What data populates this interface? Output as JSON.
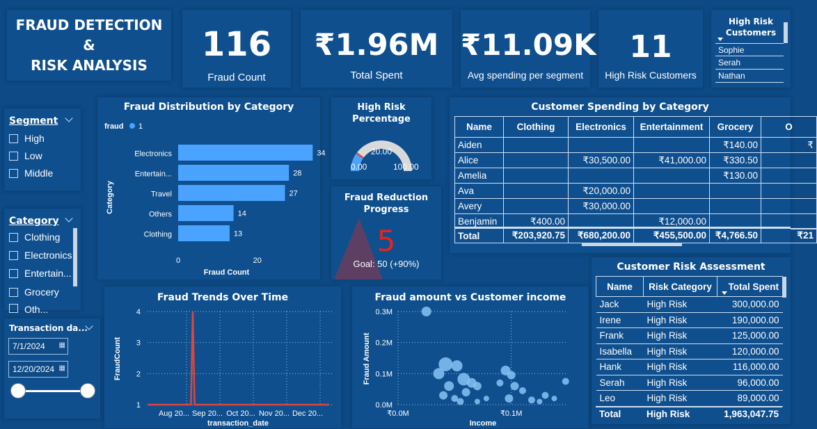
{
  "header": {
    "title_line1": "FRAUD DETECTION",
    "title_line2": "&",
    "title_line3": "RISK ANALYSIS"
  },
  "kpis": [
    {
      "value": "116",
      "label": "Fraud Count"
    },
    {
      "value": "₹1.96M",
      "label": "Total Spent"
    },
    {
      "value": "₹11.09K",
      "label": "Avg spending per segment"
    },
    {
      "value": "11",
      "label": "High Risk Customers"
    }
  ],
  "high_risk_list": {
    "title_line1": "High Risk",
    "title_line2": "Customers",
    "items": [
      "Sophie",
      "Serah",
      "Nathan"
    ]
  },
  "segment_slicer": {
    "title": "Segment",
    "items": [
      "High",
      "Low",
      "Middle"
    ]
  },
  "category_slicer": {
    "title": "Category",
    "items": [
      "Clothing",
      "Electronics",
      "Entertain...",
      "Grocery",
      "Oth..."
    ]
  },
  "date_slicer": {
    "title": "Transaction da...",
    "start": "7/1/2024",
    "end": "12/20/2024"
  },
  "gauge": {
    "title_line1": "High Risk",
    "title_line2": "Percentage",
    "value": 20,
    "value_label": "20.00",
    "min_label": "0.00",
    "max_label": "100.00",
    "min": 0,
    "max": 100
  },
  "fraud_reduction": {
    "title_line1": "Fraud Reduction",
    "title_line2": "Progress",
    "value": "5",
    "goal": "Goal: 50 (+90%)"
  },
  "customer_spending": {
    "title": "Customer Spending by Category",
    "columns": [
      "Name",
      "Clothing",
      "Electronics",
      "Entertainment",
      "Grocery",
      "O"
    ],
    "rows": [
      [
        "Aiden",
        "",
        "",
        "",
        "₹140.00",
        "₹"
      ],
      [
        "Alice",
        "",
        "₹30,500.00",
        "₹41,000.00",
        "₹330.50",
        ""
      ],
      [
        "Amelia",
        "",
        "",
        "",
        "₹130.00",
        ""
      ],
      [
        "Ava",
        "",
        "₹20,000.00",
        "",
        "",
        ""
      ],
      [
        "Avery",
        "",
        "₹30,000.00",
        "",
        "",
        ""
      ],
      [
        "Benjamin",
        "₹400.00",
        "",
        "₹12,000.00",
        "",
        ""
      ]
    ],
    "total": [
      "Total",
      "₹203,920.75",
      "₹680,200.00",
      "₹455,500.00",
      "₹4,766.50",
      "₹21"
    ]
  },
  "risk_assessment": {
    "title": "Customer Risk Assessment",
    "columns": [
      "Name",
      "Risk Category",
      "Total Spent"
    ],
    "rows": [
      [
        "Jack",
        "High Risk",
        "300,000.00"
      ],
      [
        "Irene",
        "High Risk",
        "190,000.00"
      ],
      [
        "Frank",
        "High Risk",
        "125,000.00"
      ],
      [
        "Isabella",
        "High Risk",
        "120,000.00"
      ],
      [
        "Hank",
        "High Risk",
        "116,000.00"
      ],
      [
        "Serah",
        "High Risk",
        "96,000.00"
      ],
      [
        "Leo",
        "High Risk",
        "89,000.00"
      ]
    ],
    "total": [
      "Total",
      "High Risk",
      "1,963,047.75"
    ]
  },
  "colors": {
    "background": "#0d4a86",
    "panel": "#0f4f8e",
    "bar": "#4aa3ff",
    "line": "#e0453a",
    "bubble": "#86c2f5",
    "gauge_fill": "#4aa3ff",
    "gauge_track": "#d9d9d9"
  },
  "chart_data": [
    {
      "type": "bar",
      "title": "Fraud Distribution by Category",
      "legend_title": "fraud",
      "legend": [
        "1"
      ],
      "categories": [
        "Electronics",
        "Entertain...",
        "Travel",
        "Others",
        "Clothing"
      ],
      "values": [
        34,
        28,
        27,
        14,
        13
      ],
      "xlabel": "Fraud Count",
      "ylabel": "Category",
      "xlim": [
        0,
        35
      ],
      "xticks": [
        "0",
        "20"
      ],
      "orientation": "horizontal"
    },
    {
      "type": "line",
      "title": "Fraud Trends Over Time",
      "xlabel": "transaction_date",
      "ylabel": "FraudCount",
      "xticks": [
        "Aug 20...",
        "Sep 20...",
        "Oct 20...",
        "Nov 20...",
        "Dec 20..."
      ],
      "yticks": [
        "1",
        "2",
        "3",
        "4"
      ],
      "ylim": [
        1,
        4
      ],
      "series": [
        {
          "x": [
            0,
            0.24,
            0.25,
            0.26,
            1
          ],
          "y": [
            1,
            1,
            4,
            1,
            1
          ]
        }
      ]
    },
    {
      "type": "scatter",
      "title": "Fraud amount vs Customer income",
      "xlabel": "Income",
      "ylabel": "Fraud Amount",
      "xticks": [
        "₹0.0M",
        "₹0.1M"
      ],
      "yticks": [
        "0.0M",
        "0.1M",
        "0.2M",
        "0.3M"
      ],
      "xlim": [
        0,
        0.15
      ],
      "ylim": [
        0,
        0.3
      ],
      "points": [
        {
          "x": 0.025,
          "y": 0.3,
          "r": 7
        },
        {
          "x": 0.042,
          "y": 0.13,
          "r": 10
        },
        {
          "x": 0.052,
          "y": 0.125,
          "r": 8
        },
        {
          "x": 0.036,
          "y": 0.1,
          "r": 8
        },
        {
          "x": 0.058,
          "y": 0.082,
          "r": 9
        },
        {
          "x": 0.065,
          "y": 0.07,
          "r": 7
        },
        {
          "x": 0.07,
          "y": 0.06,
          "r": 6
        },
        {
          "x": 0.045,
          "y": 0.06,
          "r": 7
        },
        {
          "x": 0.06,
          "y": 0.04,
          "r": 6
        },
        {
          "x": 0.04,
          "y": 0.03,
          "r": 6
        },
        {
          "x": 0.05,
          "y": 0.02,
          "r": 5
        },
        {
          "x": 0.055,
          "y": 0.01,
          "r": 5
        },
        {
          "x": 0.07,
          "y": 0.01,
          "r": 4
        },
        {
          "x": 0.078,
          "y": 0.02,
          "r": 4
        },
        {
          "x": 0.095,
          "y": 0.11,
          "r": 7
        },
        {
          "x": 0.1,
          "y": 0.095,
          "r": 6
        },
        {
          "x": 0.09,
          "y": 0.07,
          "r": 5
        },
        {
          "x": 0.103,
          "y": 0.06,
          "r": 6
        },
        {
          "x": 0.098,
          "y": 0.02,
          "r": 6
        },
        {
          "x": 0.11,
          "y": 0.045,
          "r": 5
        },
        {
          "x": 0.118,
          "y": 0.015,
          "r": 5
        },
        {
          "x": 0.125,
          "y": 0.01,
          "r": 4
        },
        {
          "x": 0.13,
          "y": 0.03,
          "r": 5
        },
        {
          "x": 0.138,
          "y": 0.02,
          "r": 4
        },
        {
          "x": 0.148,
          "y": 0.075,
          "r": 5
        }
      ]
    }
  ]
}
